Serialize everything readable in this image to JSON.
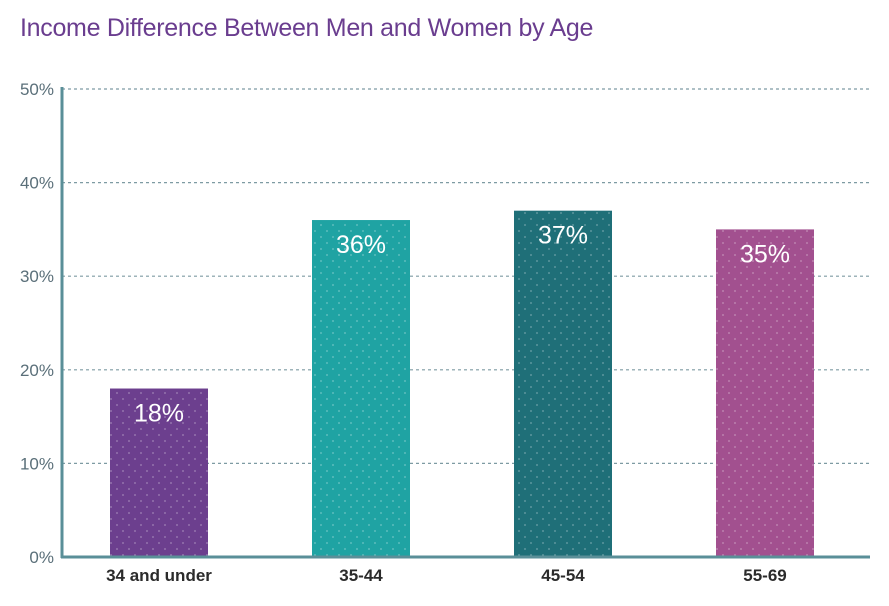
{
  "chart_data": {
    "type": "bar",
    "title": "Income Difference Between Men and Women by Age",
    "xlabel": "",
    "ylabel": "",
    "categories": [
      "34 and under",
      "35-44",
      "45-54",
      "55-69"
    ],
    "values": [
      18,
      36,
      37,
      35
    ],
    "data_labels": [
      "18%",
      "36%",
      "37%",
      "35%"
    ],
    "ylim": [
      0,
      50
    ],
    "yticks": [
      0,
      10,
      20,
      30,
      40,
      50
    ],
    "ytick_labels": [
      "0%",
      "10%",
      "20%",
      "30%",
      "40%",
      "50%"
    ],
    "grid": true,
    "legend": "none",
    "colors": [
      "#6c3f8e",
      "#1fa3a3",
      "#1f6f78",
      "#a2508f"
    ],
    "axis_color": "#5a8f98",
    "grid_color": "#7e9ba3"
  }
}
